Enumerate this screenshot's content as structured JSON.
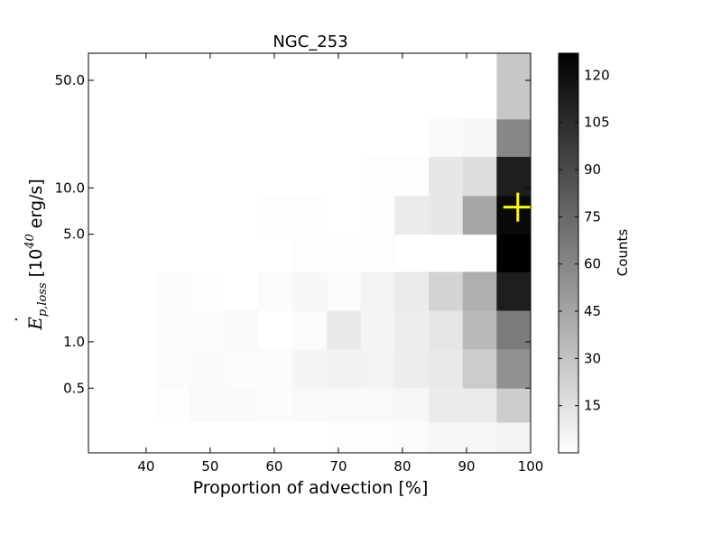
{
  "chart_data": {
    "type": "heatmap",
    "title": "NGC_253",
    "xlabel": "Proportion of advection [%]",
    "ylabel": {
      "symbol": "E",
      "subscript": "p,loss",
      "bracket_open": "[10",
      "exponent": "40",
      "unit": " erg/s]"
    },
    "xlim": [
      31,
      100
    ],
    "x_ticks": [
      40,
      50,
      60,
      70,
      80,
      90,
      100
    ],
    "y_scale": "log",
    "ylim": [
      0.19,
      75
    ],
    "y_ticks": [
      {
        "value": 0.5,
        "label": "0.5"
      },
      {
        "value": 1.0,
        "label": "1.0"
      },
      {
        "value": 5.0,
        "label": "5.0"
      },
      {
        "value": 10.0,
        "label": "10.0"
      },
      {
        "value": 50.0,
        "label": "50.0"
      }
    ],
    "x_bin_edges": [
      31.0,
      36.3,
      41.6,
      46.9,
      52.2,
      57.5,
      62.9,
      68.2,
      73.5,
      78.8,
      84.1,
      89.4,
      94.7,
      100.0
    ],
    "y_bin_edges": [
      0.19,
      0.3,
      0.5,
      0.9,
      1.6,
      2.85,
      5.0,
      8.9,
      16.0,
      28.0,
      75.0
    ],
    "counts": [
      [
        0,
        0,
        0,
        0,
        0,
        0,
        0,
        1,
        1,
        2,
        4,
        4,
        6
      ],
      [
        0,
        0,
        1,
        3,
        3,
        2,
        3,
        3,
        3,
        4,
        10,
        10,
        25
      ],
      [
        0,
        0,
        2,
        3,
        2,
        2,
        5,
        7,
        6,
        9,
        11,
        26,
        55
      ],
      [
        0,
        0,
        2,
        2,
        3,
        0,
        2,
        11,
        5,
        9,
        13,
        35,
        65
      ],
      [
        0,
        0,
        2,
        1,
        0,
        2,
        4,
        2,
        6,
        10,
        22,
        40,
        112
      ],
      [
        0,
        0,
        0,
        0,
        0,
        0,
        1,
        1,
        1,
        0,
        0,
        0,
        127
      ],
      [
        0,
        0,
        0,
        0,
        0,
        1,
        1,
        0,
        1,
        10,
        12,
        45,
        122
      ],
      [
        0,
        0,
        0,
        0,
        0,
        0,
        0,
        0,
        1,
        1,
        12,
        17,
        112
      ],
      [
        0,
        0,
        0,
        0,
        0,
        0,
        0,
        0,
        0,
        0,
        3,
        4,
        60
      ],
      [
        0,
        0,
        0,
        0,
        0,
        0,
        0,
        0,
        0,
        0,
        0,
        0,
        28
      ]
    ],
    "marker": {
      "x": 98,
      "y": 7.5,
      "color": "#ffff00",
      "shape": "plus"
    },
    "colorbar": {
      "label": "Counts",
      "min": 0,
      "max": 127,
      "ticks": [
        15,
        30,
        45,
        60,
        75,
        90,
        105,
        120
      ]
    },
    "grid": false
  }
}
